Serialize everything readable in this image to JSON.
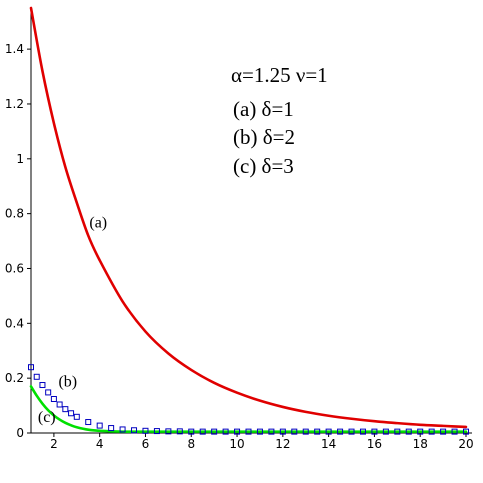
{
  "chart_data": {
    "type": "line",
    "title": "",
    "xlabel": "",
    "ylabel": "",
    "xlim": [
      1,
      20
    ],
    "ylim": [
      0,
      1.55
    ],
    "grid": false,
    "x_ticks": [
      2,
      4,
      6,
      8,
      10,
      12,
      14,
      16,
      18,
      20
    ],
    "y_ticks": [
      0,
      0.2,
      0.4,
      0.6,
      0.8,
      1,
      1.2,
      1.4
    ],
    "x_tick_labels": [
      "2",
      "4",
      "6",
      "8",
      "10",
      "12",
      "14",
      "16",
      "18",
      "20"
    ],
    "y_tick_labels": [
      "0",
      "0.2",
      "0.4",
      "0.6",
      "0.8",
      "1",
      "1.2",
      "1.4"
    ],
    "legend": {
      "placement": "top-right",
      "lines": [
        "α=1.25  ν=1",
        "(a)  δ=1",
        "(b)  δ=2",
        "(c)  δ=3"
      ]
    },
    "series": [
      {
        "name": "(a)",
        "color": "#e00000",
        "style": "line",
        "x": [
          1,
          1.5,
          2,
          2.5,
          3,
          3.5,
          4,
          5,
          6,
          7,
          8,
          9,
          10,
          11,
          12,
          13,
          14,
          15,
          16,
          17,
          18,
          19,
          20
        ],
        "y": [
          1.55,
          1.32,
          1.13,
          0.97,
          0.84,
          0.72,
          0.63,
          0.48,
          0.37,
          0.29,
          0.23,
          0.183,
          0.147,
          0.118,
          0.095,
          0.077,
          0.063,
          0.052,
          0.043,
          0.036,
          0.03,
          0.026,
          0.022
        ]
      },
      {
        "name": "(b)",
        "color": "#0000c0",
        "style": "markers",
        "marker": "square",
        "x": [
          1,
          1.25,
          1.5,
          1.75,
          2,
          2.25,
          2.5,
          2.75,
          3,
          3.5,
          4,
          4.5,
          5,
          5.5,
          6,
          6.5,
          7,
          7.5,
          8,
          8.5,
          9,
          9.5,
          10,
          10.5,
          11,
          11.5,
          12,
          12.5,
          13,
          13.5,
          14,
          14.5,
          15,
          15.5,
          16,
          16.5,
          17,
          17.5,
          18,
          18.5,
          19,
          19.5,
          20
        ],
        "y": [
          0.24,
          0.205,
          0.175,
          0.148,
          0.124,
          0.104,
          0.087,
          0.072,
          0.059,
          0.04,
          0.027,
          0.018,
          0.013,
          0.01,
          0.008,
          0.007,
          0.006,
          0.006,
          0.005,
          0.005,
          0.005,
          0.005,
          0.005,
          0.005,
          0.005,
          0.005,
          0.005,
          0.005,
          0.005,
          0.005,
          0.005,
          0.005,
          0.005,
          0.005,
          0.005,
          0.005,
          0.005,
          0.005,
          0.005,
          0.005,
          0.005,
          0.005,
          0.005
        ]
      },
      {
        "name": "(c)",
        "color": "#00e000",
        "style": "line",
        "x": [
          1,
          1.25,
          1.5,
          1.75,
          2,
          2.25,
          2.5,
          2.75,
          3,
          3.5,
          4,
          5,
          6,
          8,
          10,
          12,
          14,
          16,
          18,
          20
        ],
        "y": [
          0.17,
          0.136,
          0.107,
          0.083,
          0.064,
          0.049,
          0.037,
          0.028,
          0.021,
          0.012,
          0.008,
          0.005,
          0.005,
          0.005,
          0.005,
          0.005,
          0.005,
          0.005,
          0.005,
          0.005
        ]
      }
    ],
    "annotations": [
      {
        "text": "(a)",
        "x": 3.55,
        "y": 0.75
      },
      {
        "text": "(b)",
        "x": 2.2,
        "y": 0.17
      },
      {
        "text": "(c)",
        "x": 1.3,
        "y": 0.04
      }
    ]
  }
}
